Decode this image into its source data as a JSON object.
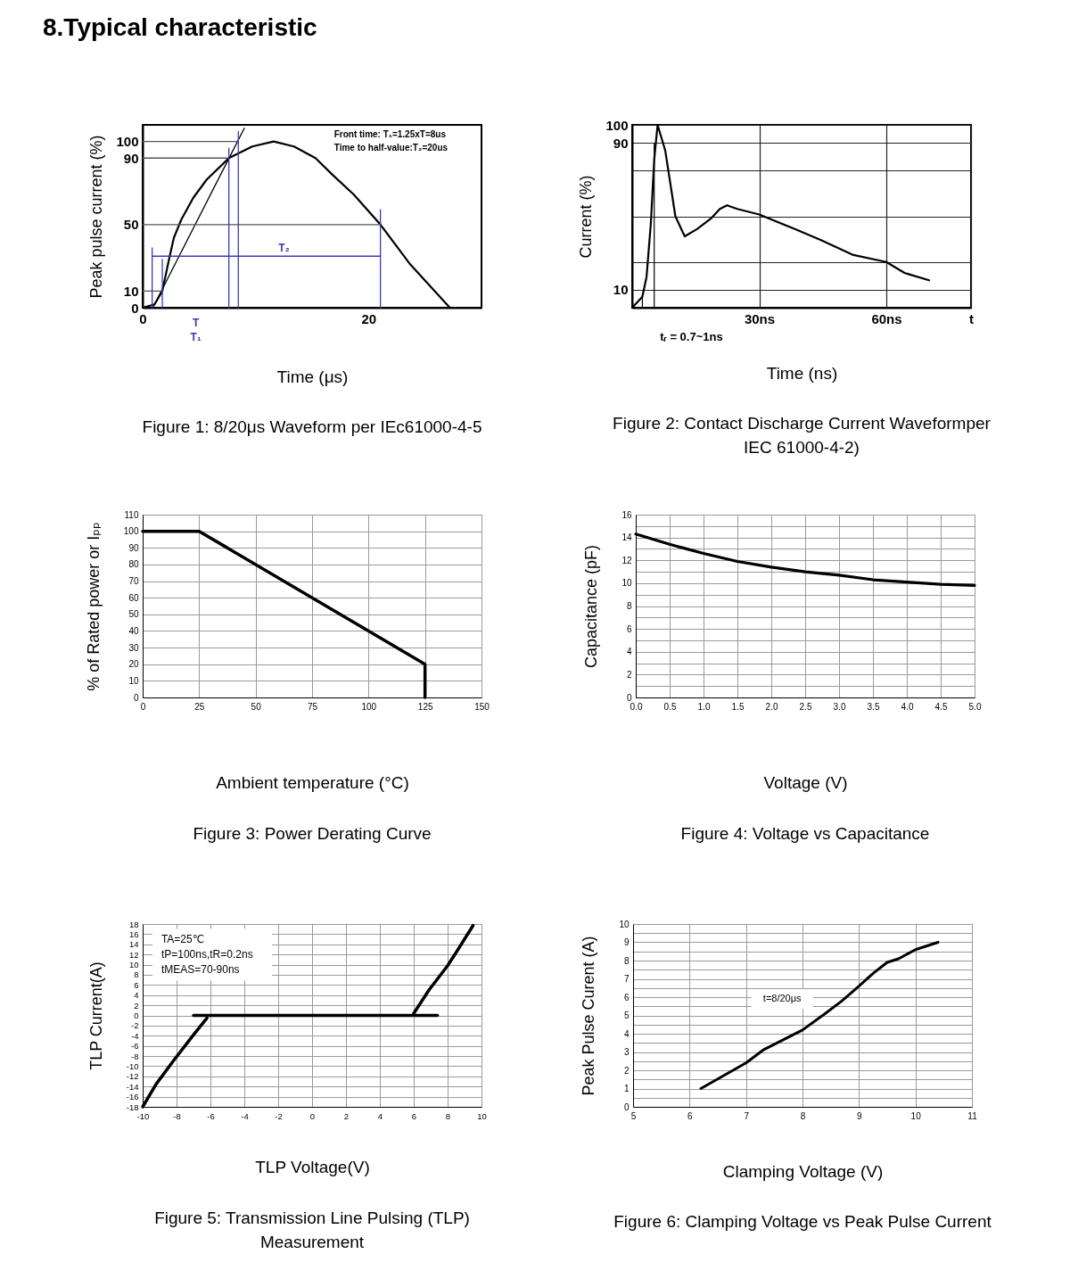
{
  "chart_data": [
    {
      "type": "other",
      "title": "8.Typical characteristic"
    },
    {
      "type": "line",
      "title": "Figure 1: 8/20μs Waveform per IEc61000-4-5",
      "xlabel": "Time (μs)",
      "ylabel": "Peak pulse current (%)",
      "xlim": [
        0,
        30
      ],
      "ylim": [
        0,
        110
      ],
      "xticks": [
        0,
        20
      ],
      "yticks": [
        0,
        10,
        50,
        90,
        100
      ],
      "annotations": [
        "Front time: T₁=1.25xT=8us",
        "Time to half-value:T₂=20us",
        "T₂",
        "T",
        "T₁"
      ],
      "series": [
        {
          "color": "#000000",
          "x": [
            0,
            1.05,
            1.74,
            2.3,
            2.76,
            3.42,
            4.47,
            5.66,
            7.63,
            9.7,
            11.6,
            13.4,
            15.3,
            16.8,
            18.7,
            21.05,
            23.7,
            27.2
          ],
          "values": [
            0,
            2,
            10,
            28,
            42,
            53,
            66,
            77,
            90,
            97,
            100,
            97,
            90,
            80,
            68,
            50,
            26,
            0
          ]
        },
        {
          "color": "#000000",
          "x": [
            0.9,
            9.0
          ],
          "values": [
            0,
            108
          ]
        },
        {
          "color": "#555555",
          "x": [
            0,
            8.47
          ],
          "values": [
            100,
            100
          ]
        },
        {
          "color": "#555555",
          "x": [
            0,
            7.63
          ],
          "values": [
            90,
            90
          ]
        },
        {
          "color": "#555555",
          "x": [
            0,
            21.05
          ],
          "values": [
            50,
            50
          ]
        },
        {
          "color": "#555555",
          "x": [
            0,
            1.74
          ],
          "values": [
            10,
            10
          ]
        },
        {
          "color": "#3a3ab4",
          "x": [
            0.84,
            0.84
          ],
          "values": [
            0,
            36
          ]
        },
        {
          "color": "#3a3ab4",
          "x": [
            1.74,
            1.74
          ],
          "values": [
            0,
            29
          ]
        },
        {
          "color": "#3a3ab4",
          "x": [
            7.63,
            7.63
          ],
          "values": [
            0,
            96
          ]
        },
        {
          "color": "#3a3ab4",
          "x": [
            8.47,
            8.47
          ],
          "values": [
            0,
            106
          ]
        },
        {
          "color": "#3a3ab4",
          "x": [
            21.05,
            21.05
          ],
          "values": [
            0,
            59
          ]
        },
        {
          "color": "#3a3ab4",
          "x": [
            0.84,
            21.05
          ],
          "values": [
            31,
            31
          ]
        }
      ]
    },
    {
      "type": "line",
      "title": "Figure 2: Contact Discharge Current Waveformper IEC 61000-4-2)",
      "xlabel": "Time (ns)",
      "ylabel": "Current (%)",
      "xlim": [
        0,
        80
      ],
      "ylim": [
        0,
        100
      ],
      "xticks": [
        {
          "value": 30,
          "label": "30ns"
        },
        {
          "value": 60,
          "label": "60ns"
        },
        {
          "value": 80,
          "label": "t"
        }
      ],
      "yticks": [
        10,
        {
          "value": 25,
          "label": null
        },
        {
          "value": 50,
          "label": null
        },
        {
          "value": 75,
          "label": null
        },
        90,
        100
      ],
      "grid": true,
      "annotations": [
        "tᵣ = 0.7~1ns"
      ],
      "series": [
        {
          "color": "#000000",
          "x": [
            0,
            2.4,
            3.4,
            4.4,
            5.2,
            6.0,
            7.8,
            10.2,
            12.4,
            15.3,
            18.7,
            20.7,
            22.4,
            24.8,
            30,
            38.4,
            44.6,
            52,
            60,
            64.3,
            70.1
          ],
          "values": [
            0,
            6,
            17,
            46,
            81,
            100,
            86,
            50,
            39,
            43,
            49,
            54,
            56,
            54,
            51,
            43,
            37,
            29,
            25,
            19,
            15
          ]
        },
        {
          "color": "#000000",
          "x": [
            2.4,
            2.4
          ],
          "values": [
            0,
            7
          ]
        },
        {
          "color": "#000000",
          "x": [
            5.2,
            5.2
          ],
          "values": [
            0,
            90
          ]
        }
      ]
    },
    {
      "type": "line",
      "title": "Figure 3: Power Derating Curve",
      "xlabel": "Ambient temperature (°C)",
      "ylabel": "% of Rated power or Iₚₚ",
      "xlim": [
        0,
        150
      ],
      "ylim": [
        0,
        110
      ],
      "xticks": [
        0,
        25,
        50,
        75,
        100,
        125,
        150
      ],
      "yticks": [
        0,
        10,
        20,
        30,
        40,
        50,
        60,
        70,
        80,
        90,
        100,
        110
      ],
      "grid": true,
      "x": [
        0,
        25,
        125,
        125
      ],
      "series": [
        {
          "color": "#000000",
          "values": [
            100,
            100,
            20,
            0
          ]
        }
      ]
    },
    {
      "type": "line",
      "title": "Figure 4: Voltage vs Capacitance",
      "xlabel": "Voltage (V)",
      "ylabel": "Capacitance (pF)",
      "xlim": [
        0,
        5
      ],
      "ylim": [
        0,
        16
      ],
      "xticks": [
        {
          "value": 0,
          "label": "0.0"
        },
        0.5,
        {
          "value": 1,
          "label": "1.0"
        },
        1.5,
        {
          "value": 2,
          "label": "2.0"
        },
        2.5,
        {
          "value": 3,
          "label": "3.0"
        },
        3.5,
        {
          "value": 4,
          "label": "4.0"
        },
        4.5,
        {
          "value": 5,
          "label": "5.0"
        }
      ],
      "yticks": [
        0,
        {
          "value": 1,
          "label": null
        },
        2,
        {
          "value": 3,
          "label": null
        },
        4,
        {
          "value": 5,
          "label": null
        },
        6,
        {
          "value": 7,
          "label": null
        },
        8,
        {
          "value": 9,
          "label": null
        },
        10,
        {
          "value": 11,
          "label": null
        },
        12,
        {
          "value": 13,
          "label": null
        },
        14,
        {
          "value": 15,
          "label": null
        },
        16
      ],
      "grid": true,
      "x": [
        0,
        0.5,
        1,
        1.5,
        2,
        2.5,
        3,
        3.5,
        4,
        4.5,
        5
      ],
      "series": [
        {
          "color": "#000000",
          "values": [
            14.3,
            13.4,
            12.6,
            11.9,
            11.4,
            11.0,
            10.7,
            10.3,
            10.1,
            9.9,
            9.8
          ]
        }
      ]
    },
    {
      "type": "line",
      "title": "Figure 5: Transmission Line Pulsing (TLP) Measurement",
      "xlabel": "TLP Voltage(V)",
      "ylabel": "TLP Current(A)",
      "xlim": [
        -10,
        10
      ],
      "ylim": [
        -18,
        18
      ],
      "xticks": [
        -10,
        -8,
        -6,
        -4,
        -2,
        0,
        2,
        4,
        6,
        8,
        10
      ],
      "yticks": [
        -18,
        -16,
        -14,
        -12,
        -10,
        -8,
        -6,
        -4,
        -2,
        0,
        2,
        4,
        6,
        8,
        10,
        12,
        14,
        16,
        18
      ],
      "grid": true,
      "annotations": [
        "TA=25℃",
        "tP=100ns,tR=0.2ns",
        "tMEAS=70-90ns"
      ],
      "series": [
        {
          "color": "#000000",
          "x": [
            -10,
            -9.2,
            -8.2,
            -6.9,
            -6.2
          ],
          "values": [
            -18,
            -13.5,
            -9,
            -3.4,
            -0.5
          ]
        },
        {
          "color": "#000000",
          "x": [
            -7,
            7.4
          ],
          "values": [
            0,
            0
          ]
        },
        {
          "color": "#000000",
          "x": [
            6.0,
            6.9,
            8.0,
            8.6,
            9.5
          ],
          "values": [
            0.4,
            5,
            9.8,
            12.9,
            17.7
          ]
        }
      ]
    },
    {
      "type": "line",
      "title": "Figure 6: Clamping Voltage vs Peak Pulse Current",
      "xlabel": "Clamping Voltage (V)",
      "ylabel": "Peak Pulse Curent (A)",
      "xlim": [
        5,
        11
      ],
      "ylim": [
        0,
        10
      ],
      "xticks": [
        5,
        6,
        7,
        8,
        9,
        10,
        11
      ],
      "yticks": [
        0,
        {
          "value": 0.5,
          "label": null
        },
        1,
        {
          "value": 1.5,
          "label": null
        },
        2,
        {
          "value": 2.5,
          "label": null
        },
        3,
        {
          "value": 3.5,
          "label": null
        },
        4,
        {
          "value": 4.5,
          "label": null
        },
        5,
        {
          "value": 5.5,
          "label": null
        },
        6,
        {
          "value": 6.5,
          "label": null
        },
        7,
        {
          "value": 7.5,
          "label": null
        },
        8,
        {
          "value": 8.5,
          "label": null
        },
        9,
        {
          "value": 9.5,
          "label": null
        },
        10
      ],
      "grid": true,
      "annotations": [
        "t=8/20μs"
      ],
      "series": [
        {
          "color": "#000000",
          "x": [
            6.2,
            7.0,
            7.3,
            8.0,
            8.4,
            8.7,
            9.0,
            9.25,
            9.5,
            9.7,
            10.0,
            10.4
          ],
          "values": [
            1.0,
            2.4,
            3.1,
            4.2,
            5.1,
            5.8,
            6.6,
            7.3,
            7.9,
            8.1,
            8.6,
            9.0
          ]
        }
      ]
    }
  ]
}
